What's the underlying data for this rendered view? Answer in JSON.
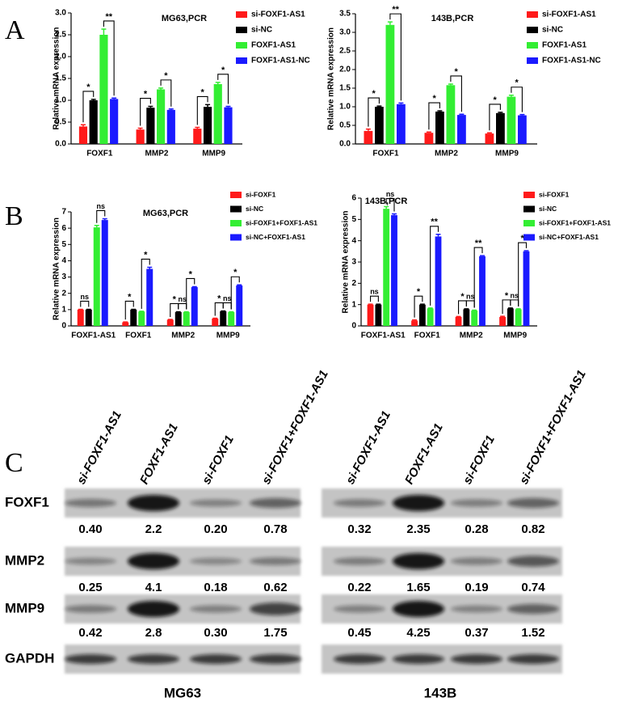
{
  "panel_labels": [
    "A",
    "B",
    "C"
  ],
  "chart_data": [
    {
      "type": "bar",
      "title": "MG63,PCR",
      "y_label": "Relative mRNA expression",
      "categories": [
        "FOXF1",
        "MMP2",
        "MMP9"
      ],
      "series": [
        {
          "name": "si-FOXF1-AS1",
          "color": "#ff1a1a",
          "values": [
            0.4,
            0.33,
            0.35
          ],
          "errors": [
            0.04,
            0.03,
            0.03
          ]
        },
        {
          "name": "si-NC",
          "color": "#000000",
          "values": [
            1.0,
            0.83,
            0.85
          ],
          "errors": [
            0.02,
            0.03,
            0.05
          ]
        },
        {
          "name": "FOXF1-AS1",
          "color": "#33ee33",
          "values": [
            2.5,
            1.25,
            1.37
          ],
          "errors": [
            0.13,
            0.03,
            0.04
          ]
        },
        {
          "name": "FOXF1-AS1-NC",
          "color": "#1a1aff",
          "values": [
            1.03,
            0.78,
            0.84
          ],
          "errors": [
            0.02,
            0.02,
            0.02
          ]
        }
      ],
      "annotations": [
        [
          "*",
          null,
          "**"
        ],
        [
          "*",
          null,
          "*"
        ],
        [
          "*",
          null,
          "*"
        ]
      ],
      "ylim": [
        0,
        3
      ],
      "yticks": [
        {
          "value": 0,
          "label": "0.0"
        },
        0.5,
        {
          "value": 1,
          "label": "1.0"
        },
        1.5,
        {
          "value": 2,
          "label": "2.0"
        },
        2.5,
        {
          "value": 3,
          "label": "3.0"
        }
      ]
    },
    {
      "type": "bar",
      "title": "143B,PCR",
      "y_label": "Relative mRNA expression",
      "categories": [
        "FOXF1",
        "MMP2",
        "MMP9"
      ],
      "series": [
        {
          "name": "si-FOXF1-AS1",
          "color": "#ff1a1a",
          "values": [
            0.35,
            0.3,
            0.28
          ],
          "errors": [
            0.05,
            0.02,
            0.02
          ]
        },
        {
          "name": "si-NC",
          "color": "#000000",
          "values": [
            1.0,
            0.87,
            0.83
          ],
          "errors": [
            0.02,
            0.02,
            0.02
          ]
        },
        {
          "name": "FOXF1-AS1",
          "color": "#33ee33",
          "values": [
            3.2,
            1.58,
            1.27
          ],
          "errors": [
            0.08,
            0.03,
            0.04
          ]
        },
        {
          "name": "FOXF1-AS1-NC",
          "color": "#1a1aff",
          "values": [
            1.07,
            0.78,
            0.77
          ],
          "errors": [
            0.03,
            0.02,
            0.02
          ]
        }
      ],
      "annotations": [
        [
          "*",
          null,
          "**"
        ],
        [
          "*",
          null,
          "*"
        ],
        [
          "*",
          null,
          "*"
        ]
      ],
      "ylim": [
        0,
        3.5
      ],
      "yticks": [
        {
          "value": 0,
          "label": "0.0"
        },
        0.5,
        {
          "value": 1,
          "label": "1.0"
        },
        1.5,
        {
          "value": 2,
          "label": "2.0"
        },
        2.5,
        {
          "value": 3,
          "label": "3.0"
        },
        3.5
      ]
    },
    {
      "type": "bar",
      "title": "MG63,PCR",
      "y_label": "Relative mRNA expression",
      "categories": [
        "FOXF1-AS1",
        "FOXF1",
        "MMP2",
        "MMP9"
      ],
      "series": [
        {
          "name": "si-FOXF1",
          "color": "#ff1a1a",
          "values": [
            1.0,
            0.22,
            0.38,
            0.45
          ],
          "errors": [
            0.02,
            0.02,
            0.02,
            0.02
          ]
        },
        {
          "name": "si-NC",
          "color": "#000000",
          "values": [
            1.0,
            1.0,
            0.85,
            0.9
          ],
          "errors": [
            0.02,
            0.02,
            0.02,
            0.02
          ]
        },
        {
          "name": "si-FOXF1+FOXF1-AS1",
          "color": "#33ee33",
          "values": [
            6.05,
            0.88,
            0.85,
            0.85
          ],
          "errors": [
            0.12,
            0.02,
            0.02,
            0.02
          ]
        },
        {
          "name": "si-NC+FOXF1-AS1",
          "color": "#1a1aff",
          "values": [
            6.5,
            3.5,
            2.38,
            2.48
          ],
          "errors": [
            0.08,
            0.1,
            0.03,
            0.04
          ]
        }
      ],
      "annotations": [
        [
          "ns",
          null,
          "ns"
        ],
        [
          "*",
          null,
          "*"
        ],
        [
          "*",
          "ns",
          "*"
        ],
        [
          "*",
          "ns",
          "*"
        ]
      ],
      "ylim": [
        0,
        7
      ],
      "yticks": [
        0,
        1,
        2,
        3,
        4,
        5,
        6,
        7
      ]
    },
    {
      "type": "bar",
      "title": "143B,PCR",
      "y_label": "Relative mRNA expression",
      "categories": [
        "FOXF1-AS1",
        "FOXF1",
        "MMP2",
        "MMP9"
      ],
      "series": [
        {
          "name": "si-FOXF1",
          "color": "#ff1a1a",
          "values": [
            1.0,
            0.25,
            0.42,
            0.42
          ],
          "errors": [
            0.02,
            0.03,
            0.02,
            0.03
          ]
        },
        {
          "name": "si-NC",
          "color": "#000000",
          "values": [
            1.0,
            1.0,
            0.78,
            0.82
          ],
          "errors": [
            0.02,
            0.02,
            0.02,
            0.02
          ]
        },
        {
          "name": "si-FOXF1+FOXF1-AS1",
          "color": "#33ee33",
          "values": [
            5.5,
            0.82,
            0.72,
            0.78
          ],
          "errors": [
            0.1,
            0.02,
            0.02,
            0.02
          ]
        },
        {
          "name": "si-NC+FOXF1-AS1",
          "color": "#1a1aff",
          "values": [
            5.2,
            4.2,
            3.27,
            3.5
          ],
          "errors": [
            0.06,
            0.1,
            0.03,
            0.03
          ]
        }
      ],
      "annotations": [
        [
          "ns",
          null,
          "ns"
        ],
        [
          "*",
          null,
          "**"
        ],
        [
          "*",
          "ns",
          "**"
        ],
        [
          "*",
          "ns",
          "*"
        ]
      ],
      "ylim": [
        0,
        6
      ],
      "yticks": [
        0,
        1,
        2,
        3,
        4,
        5,
        6
      ]
    }
  ],
  "blot": {
    "proteins": [
      "FOXF1",
      "MMP2",
      "MMP9",
      "GAPDH"
    ],
    "panels": [
      {
        "cell_line": "MG63",
        "lanes": [
          "si-FOXF1-AS1",
          "FOXF1-AS1",
          "si-FOXF1",
          "si-FOXF1+FOXF1-AS1"
        ],
        "values": [
          [
            0.4,
            2.2,
            0.2,
            0.78
          ],
          [
            0.25,
            4.1,
            0.18,
            0.62
          ],
          [
            0.42,
            2.8,
            0.3,
            1.75
          ]
        ],
        "value_labels": [
          [
            "0.40",
            "2.2",
            "0.20",
            "0.78"
          ],
          [
            "0.25",
            "4.1",
            "0.18",
            "0.62"
          ],
          [
            "0.42",
            "2.8",
            "0.30",
            "1.75"
          ]
        ]
      },
      {
        "cell_line": "143B",
        "lanes": [
          "si-FOXF1-AS1",
          "FOXF1-AS1",
          "si-FOXF1",
          "si-FOXF1+FOXF1-AS1"
        ],
        "values": [
          [
            0.32,
            2.35,
            0.28,
            0.82
          ],
          [
            0.22,
            1.65,
            0.19,
            0.74
          ],
          [
            0.45,
            4.25,
            0.37,
            1.52
          ]
        ],
        "value_labels": [
          [
            "0.32",
            "2.35",
            "0.28",
            "0.82"
          ],
          [
            "0.22",
            "1.65",
            "0.19",
            "0.74"
          ],
          [
            "0.45",
            "4.25",
            "0.37",
            "1.52"
          ]
        ]
      }
    ]
  }
}
